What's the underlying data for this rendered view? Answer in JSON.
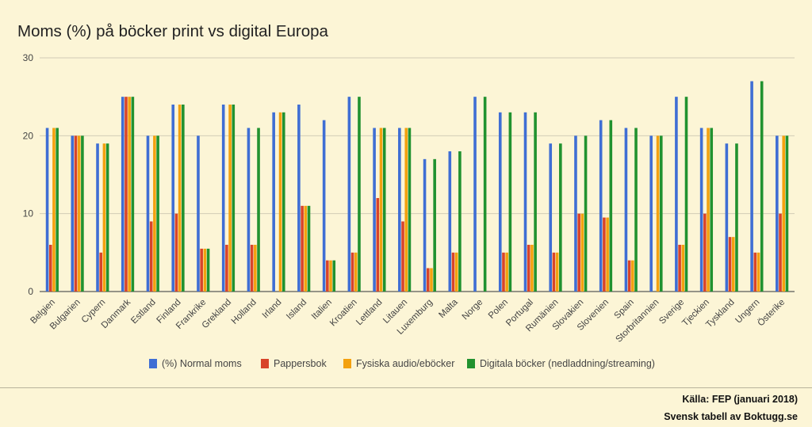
{
  "chart_data": {
    "type": "bar",
    "title": "Moms (%) på böcker print vs digital Europa",
    "ylim": [
      0,
      30
    ],
    "yticks": [
      0,
      10,
      20,
      30
    ],
    "grid": true,
    "legend_position": "bottom",
    "categories": [
      "Belgien",
      "Bulgarien",
      "Cypern",
      "Danmark",
      "Estland",
      "Finland",
      "Frankrike",
      "Grekland",
      "Holland",
      "Irland",
      "Island",
      "Italien",
      "Kroatien",
      "Lettland",
      "Litauen",
      "Luxemburg",
      "Malta",
      "Norge",
      "Polen",
      "Portugal",
      "Rumänien",
      "Slovakien",
      "Slovenien",
      "Spain",
      "Storbritannien",
      "Sverige",
      "Tjeckien",
      "Tyskland",
      "Ungern",
      "Österike"
    ],
    "series": [
      {
        "name": "(%) Normal moms",
        "color": "#3f6ed4",
        "values": [
          21,
          20,
          19,
          25,
          20,
          24,
          20,
          24,
          21,
          23,
          24,
          22,
          25,
          21,
          21,
          17,
          18,
          25,
          23,
          23,
          19,
          20,
          22,
          21,
          20,
          25,
          21,
          19,
          27,
          20
        ]
      },
      {
        "name": "Pappersbok",
        "color": "#d8442a",
        "values": [
          6,
          20,
          5,
          25,
          9,
          10,
          5.5,
          6,
          6,
          0,
          11,
          4,
          5,
          12,
          9,
          3,
          5,
          0,
          5,
          6,
          5,
          10,
          9.5,
          4,
          0,
          6,
          10,
          7,
          5,
          10
        ]
      },
      {
        "name": "Fysiska audio/eböcker",
        "color": "#f3a10f",
        "values": [
          21,
          20,
          19,
          25,
          20,
          24,
          5.5,
          24,
          6,
          23,
          11,
          4,
          5,
          21,
          21,
          3,
          5,
          0,
          5,
          6,
          5,
          10,
          9.5,
          4,
          20,
          6,
          21,
          7,
          5,
          20
        ]
      },
      {
        "name": "Digitala böcker (nedladdning/streaming)",
        "color": "#21922f",
        "values": [
          21,
          20,
          19,
          25,
          20,
          24,
          5.5,
          24,
          21,
          23,
          11,
          4,
          25,
          21,
          21,
          17,
          18,
          25,
          23,
          23,
          19,
          20,
          22,
          21,
          20,
          25,
          21,
          19,
          27,
          20
        ]
      }
    ]
  },
  "footer": {
    "source": "Källa: FEP (januari 2018)",
    "credit": "Svensk tabell av Boktugg.se"
  }
}
